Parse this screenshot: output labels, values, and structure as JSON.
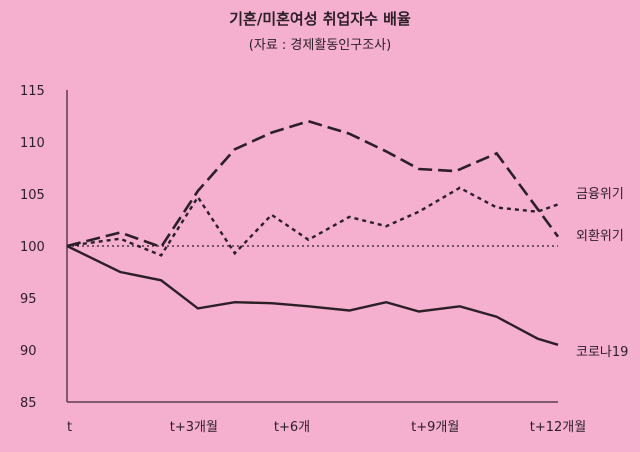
{
  "chart_data": {
    "type": "line",
    "title": "기혼/미혼여성 취업자수 배율",
    "subtitle": "(자료 : 경제활동인구조사)",
    "xlabel": "",
    "ylabel": "",
    "ylim": [
      85,
      115
    ],
    "xlim": [
      0,
      12
    ],
    "yticks": [
      85,
      90,
      95,
      100,
      105,
      110,
      115
    ],
    "xticks": [
      {
        "x": 0,
        "label": "t"
      },
      {
        "x": 3.1,
        "label": "t+3개월"
      },
      {
        "x": 5.5,
        "label": "t+6개"
      },
      {
        "x": 9,
        "label": "t+9개월"
      },
      {
        "x": 12,
        "label": "t+12개월"
      }
    ],
    "reference_line": 100,
    "grid": false,
    "series": [
      {
        "name": "금융위기",
        "style": "dashed",
        "x": [
          0,
          1.3,
          2.3,
          3.2,
          4.1,
          5.0,
          5.9,
          6.9,
          7.8,
          8.6,
          9.5,
          10.5,
          12
        ],
        "y": [
          100,
          101.3,
          99.9,
          105.3,
          109.3,
          110.9,
          112.0,
          110.8,
          109.1,
          107.4,
          107.2,
          108.9,
          100.9
        ]
      },
      {
        "name": "외환위기",
        "style": "dotted",
        "x": [
          0,
          1.3,
          2.3,
          3.2,
          4.1,
          5.0,
          5.9,
          6.9,
          7.8,
          8.6,
          9.6,
          10.5,
          11.5,
          12
        ],
        "y": [
          100,
          100.7,
          99.1,
          104.7,
          99.3,
          103.0,
          100.6,
          102.8,
          101.9,
          103.3,
          105.6,
          103.7,
          103.3,
          104.0
        ]
      },
      {
        "name": "코로나19",
        "style": "solid",
        "x": [
          0,
          1.3,
          2.3,
          3.2,
          4.1,
          5.0,
          5.9,
          6.9,
          7.8,
          8.6,
          9.6,
          10.5,
          11.5,
          12
        ],
        "y": [
          100,
          97.5,
          96.7,
          94.0,
          94.6,
          94.5,
          94.2,
          93.8,
          94.6,
          93.7,
          94.2,
          93.2,
          91.1,
          90.5
        ]
      }
    ]
  }
}
